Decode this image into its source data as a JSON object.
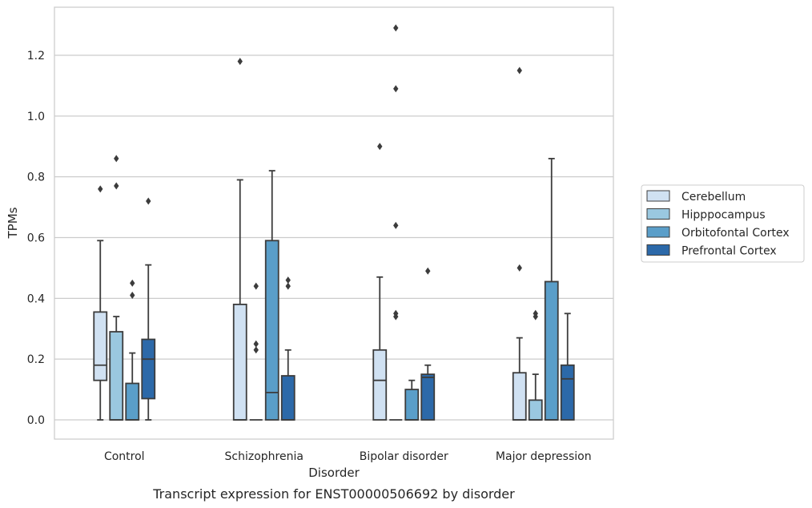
{
  "chart_data": {
    "type": "box",
    "xlabel": "Disorder",
    "ylabel": "TPMs",
    "caption": "Transcript expression for ENST00000506692 by disorder",
    "ylim": [
      -0.065,
      1.365
    ],
    "yticks": [
      0.0,
      0.2,
      0.4,
      0.6,
      0.8,
      1.0,
      1.2
    ],
    "ytick_labels": [
      "0.0",
      "0.2",
      "0.4",
      "0.6",
      "0.8",
      "1.0",
      "1.2"
    ],
    "grid": "horizontal",
    "legend_position": "right",
    "categories": [
      "Control",
      "Schizophrenia",
      "Bipolar disorder",
      "Major depression"
    ],
    "series": [
      {
        "name": "Cerebellum",
        "color": "#d0e1f2",
        "boxes": [
          {
            "q1": 0.13,
            "median": 0.18,
            "q3": 0.355,
            "whislo": 0.0,
            "whishi": 0.59,
            "fliers": [
              0.76
            ]
          },
          {
            "q1": 0.0,
            "median": 0.0,
            "q3": 0.38,
            "whislo": 0.0,
            "whishi": 0.79,
            "fliers": [
              1.18
            ]
          },
          {
            "q1": 0.0,
            "median": 0.13,
            "q3": 0.23,
            "whislo": 0.0,
            "whishi": 0.47,
            "fliers": [
              0.9
            ]
          },
          {
            "q1": 0.0,
            "median": 0.0,
            "q3": 0.155,
            "whislo": 0.0,
            "whishi": 0.27,
            "fliers": [
              0.5,
              1.15
            ]
          }
        ]
      },
      {
        "name": "Hipppocampus",
        "color": "#9ac8e0",
        "boxes": [
          {
            "q1": 0.0,
            "median": 0.0,
            "q3": 0.29,
            "whislo": 0.0,
            "whishi": 0.34,
            "fliers": [
              0.77,
              0.86
            ]
          },
          {
            "q1": 0.0,
            "median": 0.0,
            "q3": 0.0,
            "whislo": 0.0,
            "whishi": 0.0,
            "fliers": [
              0.23,
              0.25,
              0.44
            ]
          },
          {
            "q1": 0.0,
            "median": 0.0,
            "q3": 0.0,
            "whislo": 0.0,
            "whishi": 0.0,
            "fliers": [
              0.34,
              0.35,
              0.64,
              1.09,
              1.29
            ]
          },
          {
            "q1": 0.0,
            "median": 0.0,
            "q3": 0.065,
            "whislo": 0.0,
            "whishi": 0.15,
            "fliers": [
              0.34,
              0.35
            ]
          }
        ]
      },
      {
        "name": "Orbitofontal Cortex",
        "color": "#5a9ec9",
        "boxes": [
          {
            "q1": 0.0,
            "median": 0.0,
            "q3": 0.12,
            "whislo": 0.0,
            "whishi": 0.22,
            "fliers": [
              0.41,
              0.45
            ]
          },
          {
            "q1": 0.0,
            "median": 0.09,
            "q3": 0.59,
            "whislo": 0.0,
            "whishi": 0.82,
            "fliers": []
          },
          {
            "q1": 0.0,
            "median": 0.0,
            "q3": 0.1,
            "whislo": 0.0,
            "whishi": 0.13,
            "fliers": []
          },
          {
            "q1": 0.0,
            "median": 0.0,
            "q3": 0.455,
            "whislo": 0.0,
            "whishi": 0.86,
            "fliers": []
          }
        ]
      },
      {
        "name": "Prefrontal Cortex",
        "color": "#2c69a9",
        "boxes": [
          {
            "q1": 0.07,
            "median": 0.2,
            "q3": 0.265,
            "whislo": 0.0,
            "whishi": 0.51,
            "fliers": [
              0.72
            ]
          },
          {
            "q1": 0.0,
            "median": 0.0,
            "q3": 0.145,
            "whislo": 0.0,
            "whishi": 0.23,
            "fliers": [
              0.44,
              0.46
            ]
          },
          {
            "q1": 0.0,
            "median": 0.14,
            "q3": 0.15,
            "whislo": 0.0,
            "whishi": 0.18,
            "fliers": [
              0.49
            ]
          },
          {
            "q1": 0.0,
            "median": 0.135,
            "q3": 0.18,
            "whislo": 0.0,
            "whishi": 0.35,
            "fliers": []
          }
        ]
      }
    ]
  }
}
